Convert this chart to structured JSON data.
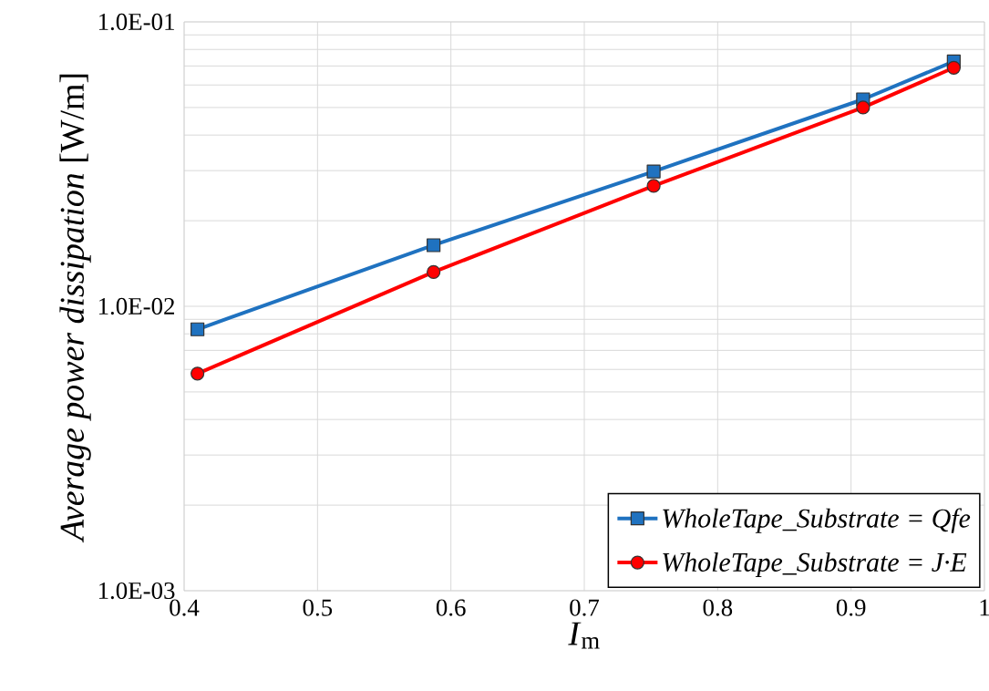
{
  "chart_data": {
    "type": "line",
    "xlabel": "*I*$_{m}$",
    "ylabel": "*Average power dissipation* [W/m]",
    "log": "y",
    "grid": true,
    "legend": "bottom right",
    "xlim": [
      0.4,
      1
    ],
    "xticks": [
      0.4,
      0.5,
      0.6,
      0.7,
      0.8,
      0.9,
      1
    ],
    "ylim": [
      0.001,
      0.1
    ],
    "yticks": [
      {
        "value": 0.001,
        "label": "1.0E-03"
      },
      {
        "value": 0.01,
        "label": "1.0E-02"
      },
      {
        "value": 0.1,
        "label": "1.0E-01"
      }
    ],
    "x": [
      0.41,
      0.587,
      0.752,
      0.909,
      0.977
    ],
    "series": [
      {
        "name": "WholeTape_Substrate = Qfe",
        "color": "#1f72c0",
        "marker": "square",
        "values": [
          0.0083,
          0.0164,
          0.0298,
          0.0534,
          0.0726
        ]
      },
      {
        "name": "WholeTape_Substrate = J·E",
        "color": "#ff0000",
        "marker": "circle",
        "values": [
          0.0058,
          0.0132,
          0.0265,
          0.05,
          0.069
        ]
      }
    ]
  }
}
